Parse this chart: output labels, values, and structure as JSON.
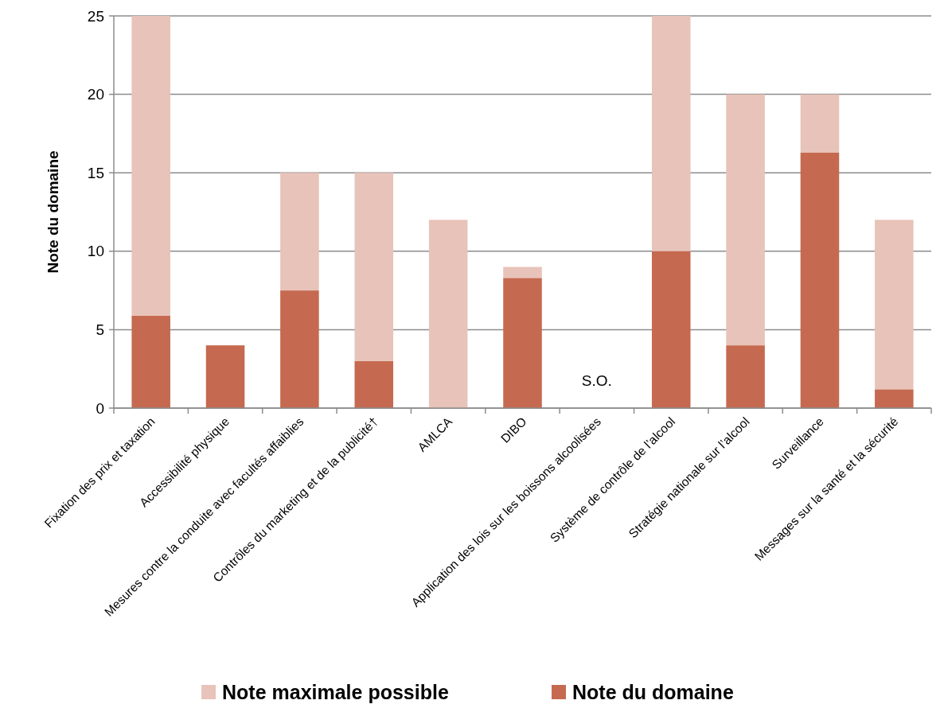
{
  "chart_data": {
    "type": "bar",
    "ylabel": "Note du domaine",
    "categories": [
      "Fixation des prix et taxation",
      "Accessibilité physique",
      "Mesures contre la conduite avec facultés affaiblies",
      "Contrôles du marketing et de la publicité†",
      "AMLCA",
      "DIBO",
      "Application des lois sur les boissons alcoolisées",
      "Système de contrôle de l’alcool",
      "Stratégie nationale sur l’alcool",
      "Surveillance",
      "Messages sur la santé et la sécurité"
    ],
    "stacked": true,
    "series": [
      {
        "name": "Note du domaine",
        "color": "#c56a50",
        "values": [
          5.9,
          4,
          7.5,
          3,
          0,
          8.3,
          null,
          10,
          4,
          16.3,
          1.2
        ]
      },
      {
        "name": "Note maximale possible",
        "color": "#e8c3b9",
        "values": [
          19.1,
          null,
          7.5,
          12,
          12,
          0.7,
          null,
          15,
          16,
          3.7,
          10.8
        ]
      }
    ],
    "annotations": [
      "S.O."
    ],
    "ylim": [
      0,
      25
    ],
    "yticks": [
      0,
      5,
      10,
      15,
      20,
      25
    ],
    "grid": "y",
    "legend": "bottom"
  }
}
